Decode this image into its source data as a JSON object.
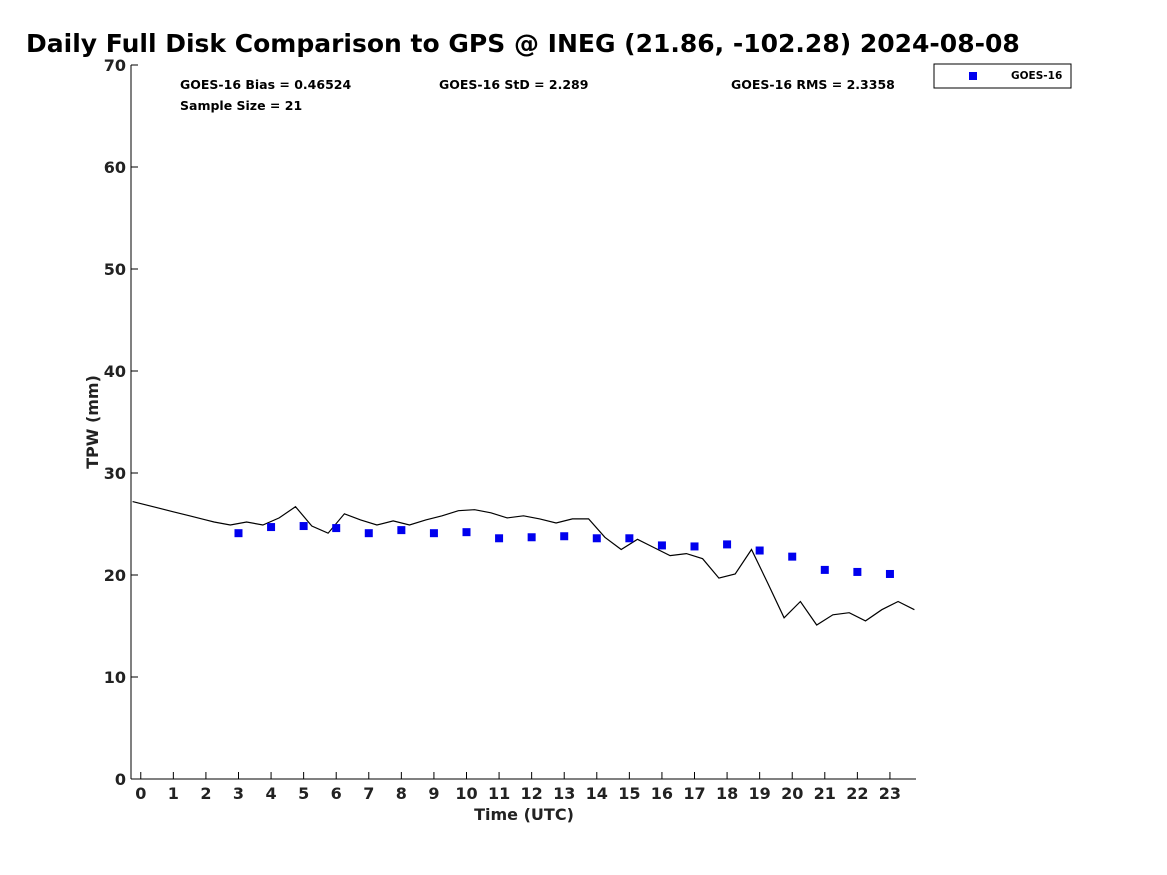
{
  "chart_data": {
    "type": "scatter",
    "title": "Daily Full Disk Comparison to GPS @ INEG (21.86, -102.28) 2024-08-08",
    "xlabel": "Time (UTC)",
    "ylabel": "TPW (mm)",
    "xlim": [
      -0.3,
      23.8
    ],
    "ylim": [
      0,
      70
    ],
    "xticks": [
      0,
      1,
      2,
      3,
      4,
      5,
      6,
      7,
      8,
      9,
      10,
      11,
      12,
      13,
      14,
      15,
      16,
      17,
      18,
      19,
      20,
      21,
      22,
      23
    ],
    "yticks": [
      0,
      10,
      20,
      30,
      40,
      50,
      60,
      70
    ],
    "grid": false,
    "legend_position": "top-right",
    "stats": {
      "bias": "GOES-16 Bias = 0.46524",
      "std": "GOES-16 StD = 2.289",
      "rms": "GOES-16 RMS = 2.3358",
      "sample": "Sample Size = 21"
    },
    "series": [
      {
        "name": "GOES-16",
        "kind": "scatter",
        "color": "#0000ee",
        "x": [
          3,
          4,
          5,
          6,
          7,
          8,
          9,
          10,
          11,
          12,
          13,
          14,
          15,
          16,
          17,
          18,
          19,
          20,
          21,
          22,
          23
        ],
        "y": [
          24.1,
          24.7,
          24.8,
          24.6,
          24.1,
          24.4,
          24.1,
          24.2,
          23.6,
          23.7,
          23.8,
          23.6,
          23.6,
          22.9,
          22.8,
          23.0,
          22.4,
          21.8,
          20.5,
          20.3,
          20.1
        ]
      },
      {
        "kind": "line",
        "color": "#000000",
        "x": [
          -0.25,
          0.5,
          1,
          1.5,
          2,
          2.25,
          2.75,
          3.25,
          3.75,
          4.25,
          4.75,
          5.25,
          5.75,
          6.25,
          6.75,
          7.25,
          7.75,
          8.25,
          8.75,
          9.25,
          9.75,
          10.25,
          10.75,
          11.25,
          11.75,
          12.25,
          12.75,
          13.25,
          13.75,
          14.25,
          14.75,
          15.25,
          15.75,
          16.25,
          16.75,
          17.25,
          17.75,
          18.25,
          18.75,
          19.25,
          19.75,
          20.25,
          20.75,
          21.25,
          21.75,
          22.25,
          22.75,
          23.25,
          23.75
        ],
        "y": [
          27.2,
          26.6,
          26.2,
          25.8,
          25.4,
          25.2,
          24.9,
          25.2,
          24.9,
          25.6,
          26.7,
          24.8,
          24.1,
          26.0,
          25.4,
          24.9,
          25.3,
          24.9,
          25.4,
          25.8,
          26.3,
          26.4,
          26.1,
          25.6,
          25.8,
          25.5,
          25.1,
          25.5,
          25.5,
          23.7,
          22.5,
          23.5,
          22.7,
          21.9,
          22.1,
          21.6,
          19.7,
          20.1,
          22.5,
          19.2,
          15.8,
          17.4,
          15.1,
          16.1,
          16.3,
          15.5,
          16.6,
          17.4,
          16.6
        ]
      }
    ]
  }
}
